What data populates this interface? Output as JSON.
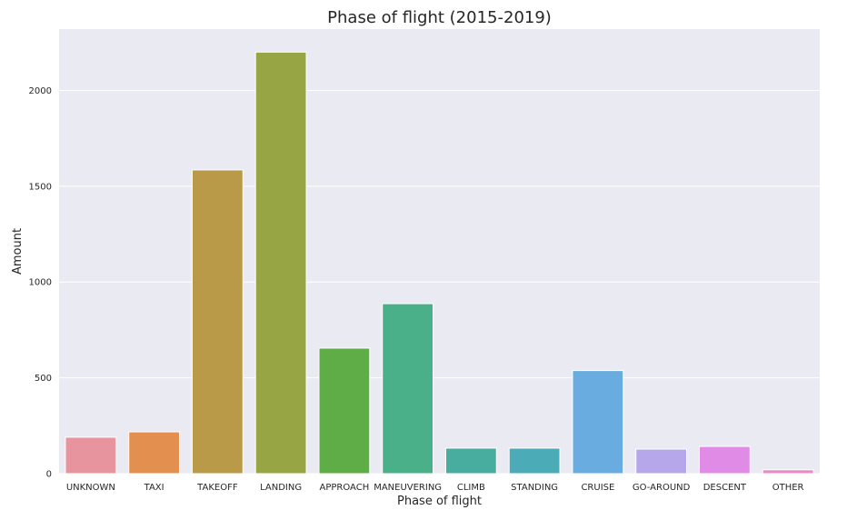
{
  "chart_data": {
    "type": "bar",
    "title": "Phase of flight (2015-2019)",
    "xlabel": "Phase of flight",
    "ylabel": "Amount",
    "ylim": [
      0,
      2320
    ],
    "yticks": [
      0,
      500,
      1000,
      1500,
      2000
    ],
    "grid": true,
    "categories": [
      "UNKNOWN",
      "TAXI",
      "TAKEOFF",
      "LANDING",
      "APPROACH",
      "MANEUVERING",
      "CLIMB",
      "STANDING",
      "CRUISE",
      "GO-AROUND",
      "DESCENT",
      "OTHER"
    ],
    "values": [
      190,
      218,
      1585,
      2200,
      655,
      887,
      133,
      133,
      538,
      128,
      142,
      20
    ],
    "colors": [
      "#e8949f",
      "#e38f4f",
      "#b89a49",
      "#98a544",
      "#5fad47",
      "#4ab08a",
      "#48ac9f",
      "#4babb7",
      "#69ade0",
      "#b6a7ea",
      "#e08be6",
      "#ea8acb"
    ]
  }
}
